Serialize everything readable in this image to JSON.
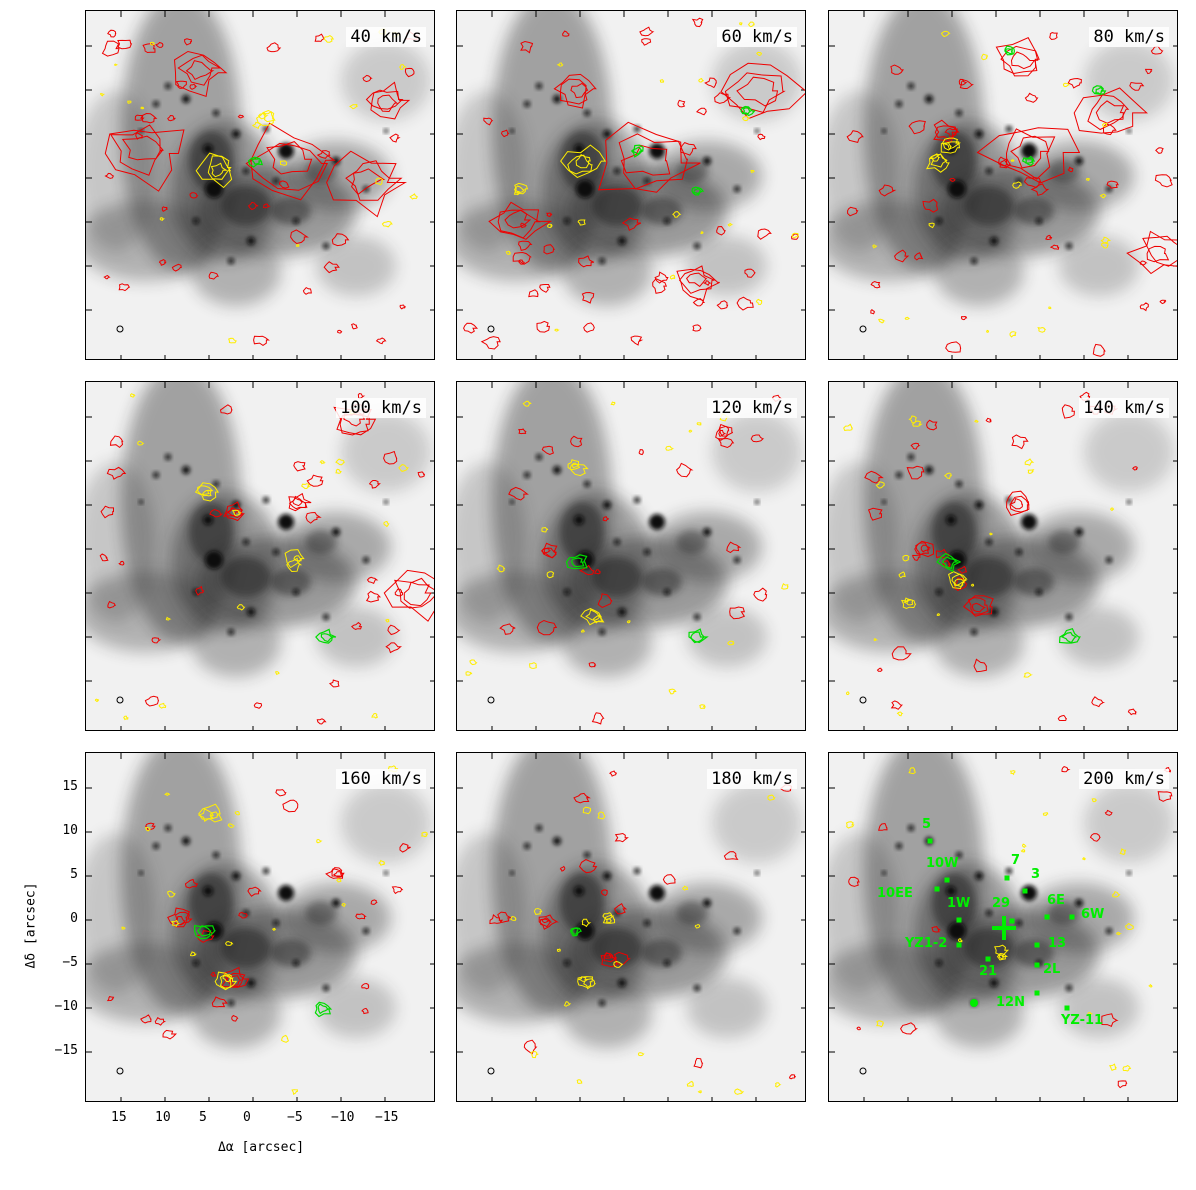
{
  "panels": [
    {
      "velocity": "40 km/s"
    },
    {
      "velocity": "60 km/s"
    },
    {
      "velocity": "80 km/s"
    },
    {
      "velocity": "100 km/s"
    },
    {
      "velocity": "120 km/s"
    },
    {
      "velocity": "140 km/s"
    },
    {
      "velocity": "160 km/s"
    },
    {
      "velocity": "180 km/s"
    },
    {
      "velocity": "200 km/s"
    }
  ],
  "axes": {
    "xlabel": "Δα [arcsec]",
    "ylabel": "Δδ [arcsec]",
    "xticks": [
      "15",
      "10",
      "5",
      "0",
      "−5",
      "−10",
      "−15"
    ],
    "yticks": [
      "15",
      "10",
      "5",
      "0",
      "−5",
      "−10",
      "−15"
    ]
  },
  "sources": [
    {
      "label": "5"
    },
    {
      "label": "10W"
    },
    {
      "label": "7"
    },
    {
      "label": "3"
    },
    {
      "label": "10EE"
    },
    {
      "label": "1W"
    },
    {
      "label": "29"
    },
    {
      "label": "6E"
    },
    {
      "label": "6W"
    },
    {
      "label": "YZ1-2"
    },
    {
      "label": "13"
    },
    {
      "label": "21"
    },
    {
      "label": "2L"
    },
    {
      "label": "12N"
    },
    {
      "label": "YZ-11"
    }
  ],
  "colors": {
    "contour_a": "#ee0000",
    "contour_b": "#ffee00",
    "contour_c": "#00dd00",
    "marker": "#00ee00"
  }
}
